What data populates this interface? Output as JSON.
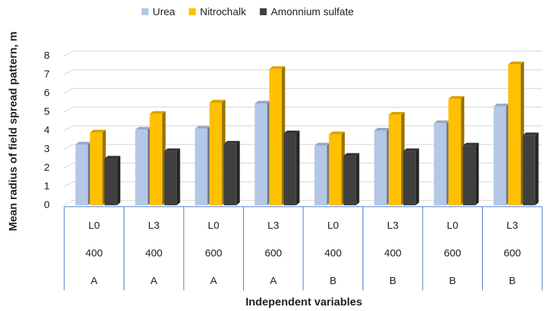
{
  "chart_data": {
    "type": "bar",
    "x_label": "Independent variables",
    "y_label": "Mean radius of  field spread pattern, m",
    "categories": [
      [
        "L0",
        "400",
        "A"
      ],
      [
        "L3",
        "400",
        "A"
      ],
      [
        "L0",
        "600",
        "A"
      ],
      [
        "L3",
        "600",
        "A"
      ],
      [
        "L0",
        "400",
        "B"
      ],
      [
        "L3",
        "400",
        "B"
      ],
      [
        "L0",
        "600",
        "B"
      ],
      [
        "L3",
        "600",
        "B"
      ]
    ],
    "series": [
      {
        "name": "Urea",
        "color": "#b4c7e7",
        "values": [
          3.25,
          4.05,
          4.1,
          5.45,
          3.2,
          4.0,
          4.4,
          5.3
        ]
      },
      {
        "name": "Nitrochalk",
        "color": "#ffc000",
        "values": [
          3.9,
          4.9,
          5.5,
          7.3,
          3.8,
          4.85,
          5.7,
          7.55
        ]
      },
      {
        "name": "Amonnium sulfate",
        "color": "#404040",
        "values": [
          2.5,
          2.9,
          3.3,
          3.85,
          2.65,
          2.9,
          3.2,
          3.75
        ]
      }
    ],
    "ylim": [
      0,
      8
    ],
    "yticks": [
      0,
      1,
      2,
      3,
      4,
      5,
      6,
      7,
      8
    ],
    "grid": true,
    "legend": "top"
  }
}
